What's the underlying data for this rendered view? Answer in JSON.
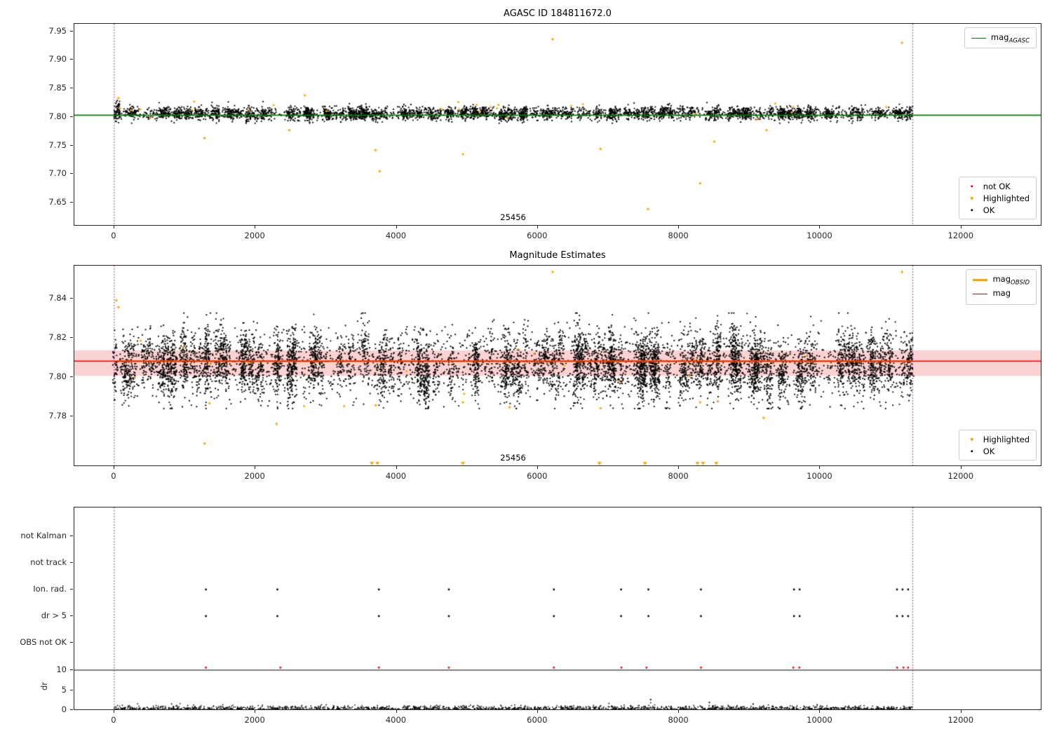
{
  "colors": {
    "ok": "#000000",
    "highlighted": "#ffa500",
    "not_ok": "#ff0000",
    "mag_agasc": "#008000",
    "mag": "#ff0000",
    "mag_obsid": "#ffa500",
    "band": "#fbd2d2",
    "vline": "#800080",
    "spine": "#262626"
  },
  "chart_data": [
    {
      "type": "scatter",
      "title": "AGASC ID 184811672.0",
      "xlim": [
        -565,
        13125
      ],
      "ylim": [
        7.611,
        7.963
      ],
      "xticks": [
        0,
        2000,
        4000,
        6000,
        8000,
        10000,
        12000
      ],
      "yticks": [
        7.65,
        7.7,
        7.75,
        7.8,
        7.85,
        7.9,
        7.95
      ],
      "ytick_labels": [
        "7.65",
        "7.70",
        "7.75",
        "7.80",
        "7.85",
        "7.90",
        "7.95"
      ],
      "agasc_mag_line": {
        "y": 7.803
      },
      "vlines": [
        0,
        11310
      ],
      "annotation": {
        "text": "25456",
        "x": 5650
      },
      "ok_cloud": {
        "clusters": 170,
        "points_per_cluster": 19,
        "uniform_n": 1400,
        "x_min": 0,
        "x_max": 11310,
        "x_jitter": 45,
        "mean": 7.806,
        "cluster_sd": 0.0018,
        "point_sd": 0.0055,
        "clip_min": 7.789,
        "clip_max": 7.839
      },
      "edge_cluster": {
        "x": 50,
        "n": 25,
        "mean": 7.815,
        "sd": 0.009
      },
      "highlight_cloud": {
        "n": 26,
        "x_min": 0,
        "x_max": 11310,
        "mean": 7.812,
        "sd": 0.009,
        "clip_min": 7.796,
        "clip_max": 7.834
      },
      "highlight_outliers": [
        [
          60,
          7.833
        ],
        [
          1280,
          7.763
        ],
        [
          2480,
          7.777
        ],
        [
          2700,
          7.838
        ],
        [
          3700,
          7.742
        ],
        [
          3760,
          7.705
        ],
        [
          4940,
          7.735
        ],
        [
          6210,
          7.936
        ],
        [
          6890,
          7.744
        ],
        [
          7560,
          7.639
        ],
        [
          8300,
          7.684
        ],
        [
          8500,
          7.757
        ],
        [
          9240,
          7.777
        ],
        [
          11160,
          7.93
        ]
      ],
      "line_legend": [
        {
          "main": "mag",
          "sub": "AGASC"
        }
      ],
      "point_legend": [
        {
          "label": "not OK"
        },
        {
          "label": "Highlighted"
        },
        {
          "label": "OK"
        }
      ]
    },
    {
      "type": "scatter",
      "title": "Magnitude Estimates",
      "xlim": [
        -565,
        13125
      ],
      "ylim": [
        7.7548,
        7.8567
      ],
      "xticks": [
        0,
        2000,
        4000,
        6000,
        8000,
        10000,
        12000
      ],
      "yticks": [
        7.78,
        7.8,
        7.82,
        7.84
      ],
      "ytick_labels": [
        "7.78",
        "7.80",
        "7.82",
        "7.84"
      ],
      "mag_band": {
        "y1": 7.8005,
        "y2": 7.8135
      },
      "mag_line": {
        "y": 7.808
      },
      "obsid_line": {
        "y": 7.808,
        "x_min": 0,
        "x_max": 11310
      },
      "vlines": [
        0,
        11310
      ],
      "annotation": {
        "text": "25456",
        "x": 5650
      },
      "ok_cloud": {
        "clusters": 165,
        "points_per_cluster": 38,
        "uniform_n": 2600,
        "x_min": 0,
        "x_max": 11310,
        "x_jitter": 40,
        "mean": 7.8062,
        "cluster_sd": 0.004,
        "point_sd": 0.0078,
        "clip_min": 7.7838,
        "clip_max": 7.8325
      },
      "highlight_cloud": {
        "n": 16,
        "x_min": 0,
        "x_max": 11310,
        "mean": 7.81,
        "sd": 0.012,
        "clip_min": 7.785,
        "clip_max": 7.832
      },
      "highlight_outliers": [
        [
          30,
          7.839
        ],
        [
          60,
          7.8355
        ],
        [
          1280,
          7.766
        ],
        [
          1350,
          7.7865
        ],
        [
          2300,
          7.776
        ],
        [
          3705,
          7.7855
        ],
        [
          4940,
          7.787
        ],
        [
          5600,
          7.7845
        ],
        [
          6210,
          7.8535
        ],
        [
          6890,
          7.784
        ],
        [
          8300,
          7.787
        ],
        [
          8550,
          7.7875
        ],
        [
          9200,
          7.779
        ],
        [
          11160,
          7.8535
        ]
      ],
      "clipped_low_x": [
        3650,
        3729,
        4939,
        6873,
        7518,
        8262,
        8341,
        8530
      ],
      "line_legend": [
        {
          "main": "mag",
          "sub": "OBSID"
        },
        {
          "main": "mag",
          "sub": ""
        }
      ],
      "point_legend": [
        {
          "label": "Highlighted"
        },
        {
          "label": "OK"
        }
      ]
    },
    {
      "type": "flags",
      "xlim": [
        -565,
        13125
      ],
      "xticks": [
        0,
        2000,
        4000,
        6000,
        8000,
        10000,
        12000
      ],
      "categories": [
        "not Kalman",
        "not track",
        "Ion. rad.",
        "dr > 5",
        "OBS not OK"
      ],
      "dr_ticks": [
        10,
        5,
        0
      ],
      "dr_tick_labels": [
        "10",
        "5",
        "0"
      ],
      "dr_label": "dr",
      "dr_hline": 10,
      "vlines": [
        0,
        11310
      ],
      "flag_rows": {
        "ion_rad": [
          1299,
          2311,
          3749,
          4740,
          6228,
          7180,
          7567,
          8311,
          9630,
          9709,
          11088,
          11167,
          11246
        ],
        "dr_gt_5": [
          1299,
          2311,
          3749,
          4740,
          6228,
          7180,
          7567,
          8311,
          9630,
          9709,
          11088,
          11167,
          11246
        ]
      },
      "red_dr_x": [
        1299,
        2355,
        3749,
        4740,
        6228,
        7185,
        7540,
        8311,
        9620,
        9705,
        11090,
        11180,
        11246
      ],
      "dr_spikes": [
        [
          7600,
          2.6
        ],
        [
          8430,
          1.9
        ],
        [
          9050,
          1.5
        ]
      ],
      "dr_cloud": {
        "n": 1700,
        "x_min": 0,
        "x_max": 11310,
        "scale": 0.45,
        "offset": 0.12
      }
    }
  ]
}
